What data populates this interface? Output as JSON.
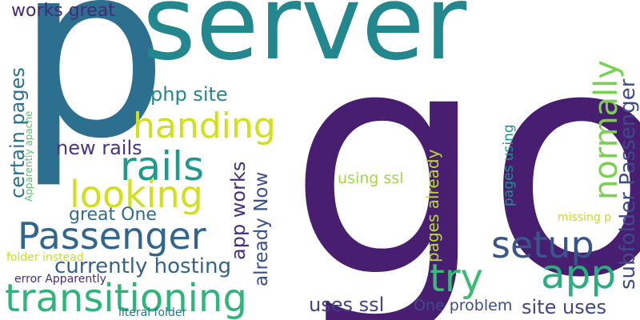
{
  "words": [
    {
      "id": "go",
      "text": "go",
      "color": "#481F70"
    },
    {
      "id": "p",
      "text": "p",
      "color": "#2D6F8E"
    },
    {
      "id": "server",
      "text": "server",
      "color": "#23878E"
    },
    {
      "id": "transitioning",
      "text": "transitioning",
      "color": "#2FB47C"
    },
    {
      "id": "passenger",
      "text": "Passenger",
      "color": "#31668E"
    },
    {
      "id": "looking",
      "text": "looking",
      "color": "#D0E11C"
    },
    {
      "id": "rails",
      "text": "rails",
      "color": "#1F9A8A"
    },
    {
      "id": "handing",
      "text": "handing",
      "color": "#D0E11C"
    },
    {
      "id": "try",
      "text": "try",
      "color": "#3BBB75"
    },
    {
      "id": "app",
      "text": "app",
      "color": "#29AF7F"
    },
    {
      "id": "setup",
      "text": "setup",
      "color": "#39568C"
    },
    {
      "id": "normally",
      "text": "normally",
      "color": "#7AD151"
    },
    {
      "id": "subfolder-passenger",
      "text": "subfolder Passenger",
      "color": "#3E4A89"
    },
    {
      "id": "currently-hosting",
      "text": "currently hosting",
      "color": "#33638D"
    },
    {
      "id": "site-uses",
      "text": "site uses",
      "color": "#3F4788"
    },
    {
      "id": "uses-ssl",
      "text": "uses ssl",
      "color": "#424086"
    },
    {
      "id": "php-site",
      "text": "php site",
      "color": "#24878E"
    },
    {
      "id": "new-rails",
      "text": "new rails",
      "color": "#453781"
    },
    {
      "id": "great-one",
      "text": "great One",
      "color": "#2F6C8E"
    },
    {
      "id": "works-great",
      "text": "works great",
      "color": "#482878"
    },
    {
      "id": "one-problem",
      "text": "One problem",
      "color": "#3E4A89"
    },
    {
      "id": "certain-pages",
      "text": "certain pages",
      "color": "#2C728E"
    },
    {
      "id": "app-works",
      "text": "app works",
      "color": "#46307E"
    },
    {
      "id": "already-now",
      "text": "already Now",
      "color": "#3B518B"
    },
    {
      "id": "pages-already",
      "text": "pages already",
      "color": "#B5DE2B"
    },
    {
      "id": "using-ssl",
      "text": "using ssl",
      "color": "#A0DA39"
    },
    {
      "id": "pages-using",
      "text": "pages using",
      "color": "#21918C"
    },
    {
      "id": "missing-p",
      "text": "missing p",
      "color": "#BDDF26"
    },
    {
      "id": "folder-instead",
      "text": "folder instead",
      "color": "#C8E020"
    },
    {
      "id": "error-apparently",
      "text": "error Apparently",
      "color": "#472D7B"
    },
    {
      "id": "literal-folder",
      "text": "literal folder",
      "color": "#2A788E"
    },
    {
      "id": "apparently-apache",
      "text": "Apparently apache",
      "color": "#55C667"
    }
  ]
}
